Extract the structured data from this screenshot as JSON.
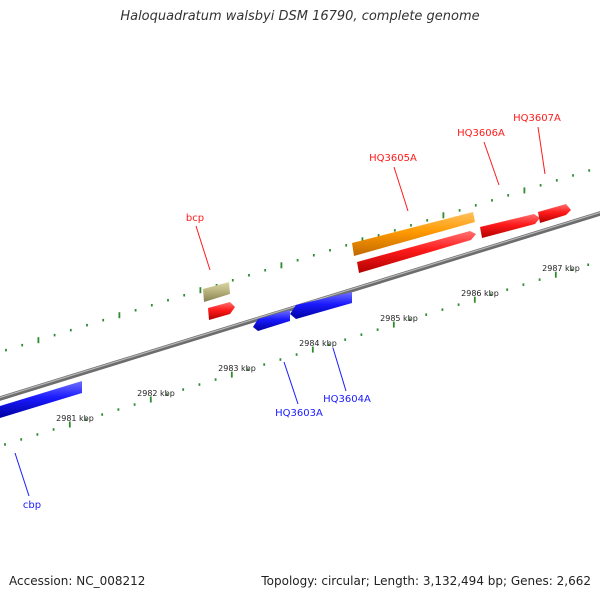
{
  "title": "Haloquadratum walsbyi DSM 16790, complete genome",
  "footer": {
    "accession": "Accession: NC_008212",
    "summary": "Topology: circular; Length: 3,132,494 bp; Genes: 2,662"
  },
  "colors": {
    "backbone": "#8a8a8a",
    "tick": "#2e8b2e",
    "forward": "#ff1a1a",
    "reverse": "#1a1aff",
    "rrna_like": "#ff9a00",
    "other": "#b5b07a"
  },
  "scale_labels": [
    "2981 kbp",
    "2982 kbp",
    "2983 kbp",
    "2984 kbp",
    "2985 kbp",
    "2986 kbp",
    "2987 kbp"
  ],
  "genes": [
    {
      "id": "cbp",
      "label": "cbp",
      "strand": "reverse"
    },
    {
      "id": "HQ3603A",
      "label": "HQ3603A",
      "strand": "reverse"
    },
    {
      "id": "HQ3604A",
      "label": "HQ3604A",
      "strand": "reverse"
    },
    {
      "id": "bcp",
      "label": "bcp",
      "strand": "forward"
    },
    {
      "id": "HQ3605A",
      "label": "HQ3605A",
      "strand": "forward"
    },
    {
      "id": "HQ3606A",
      "label": "HQ3606A",
      "strand": "forward"
    },
    {
      "id": "HQ3607A",
      "label": "HQ3607A",
      "strand": "forward"
    }
  ]
}
